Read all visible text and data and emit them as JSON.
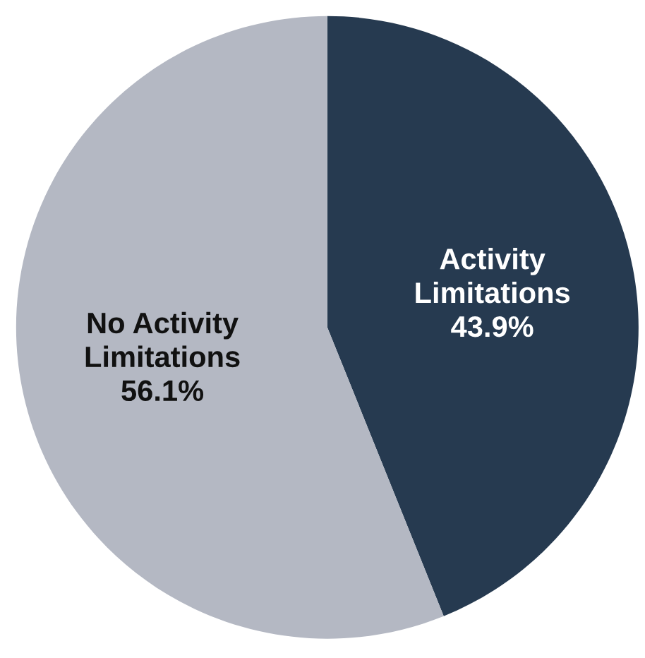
{
  "chart_data": {
    "type": "pie",
    "categories": [
      "Activity Limitations",
      "No Activity Limitations"
    ],
    "values": [
      43.9,
      56.1
    ],
    "value_labels": [
      "43.9%",
      "56.1%"
    ],
    "colors": [
      "#263a50",
      "#b4b8c3"
    ]
  }
}
